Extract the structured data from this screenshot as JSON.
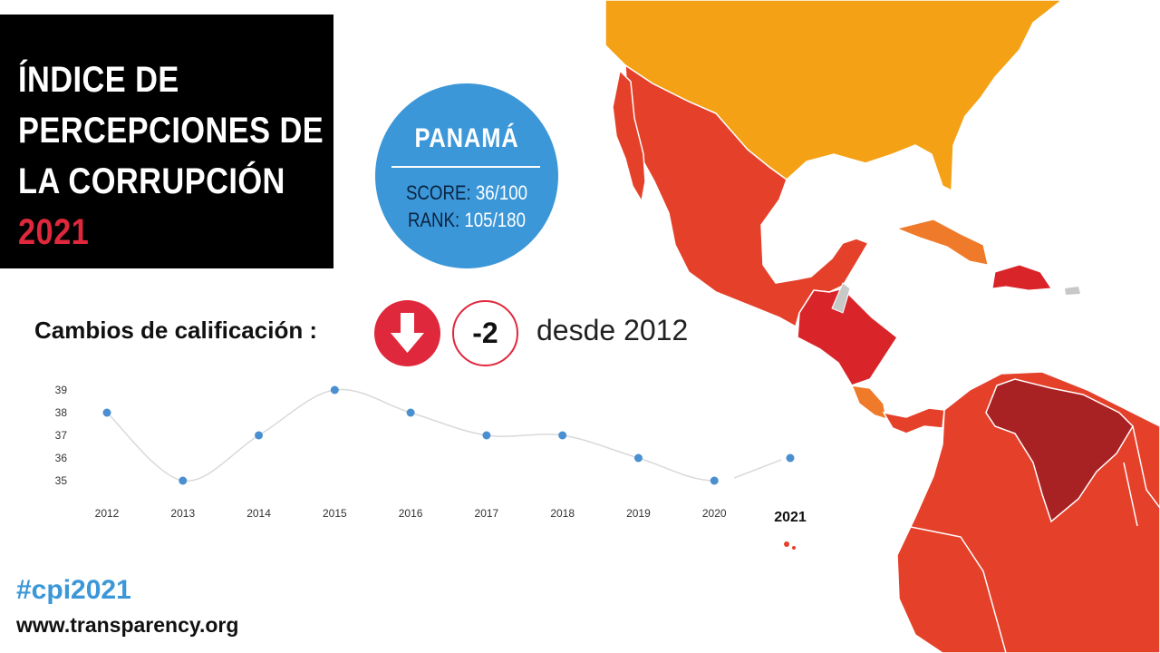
{
  "header": {
    "title_lines": [
      "ÍNDICE  DE",
      "PERCEPCIONES DE",
      "LA CORRUPCIÓN"
    ],
    "year": "2021"
  },
  "country_card": {
    "name": "PANAMÁ",
    "score_label": "SCORE:",
    "score_value": "36/100",
    "rank_label": "RANK:",
    "rank_value": "105/180"
  },
  "change": {
    "label": "Cambios de calificación :",
    "direction_icon": "arrow-down-icon",
    "delta": "-2",
    "since": "desde 2012"
  },
  "chart_data": {
    "type": "line",
    "categories": [
      "2012",
      "2013",
      "2014",
      "2015",
      "2016",
      "2017",
      "2018",
      "2019",
      "2020",
      "2021"
    ],
    "series": [
      {
        "values": [
          38,
          35,
          37,
          39,
          38,
          37,
          37,
          36,
          35,
          36
        ]
      }
    ],
    "ylim": [
      35,
      39
    ],
    "yticks": [
      "35",
      "36",
      "37",
      "38",
      "39"
    ],
    "highlight_category": "2021",
    "grid": false,
    "colors": {
      "point": "#4a8fd0",
      "line": "#d9d9d9"
    }
  },
  "footer": {
    "hashtag": "#cpi2021",
    "website": "www.transparency.org"
  },
  "colors": {
    "title_bg": "#000000",
    "accent_red": "#e0283c",
    "accent_blue": "#3b97d8",
    "map_usa": "#f4a116",
    "map_mexico": "#e5402a",
    "map_central": "#d9252a",
    "map_venezuela": "#a82224",
    "map_costa_rica": "#ee7a2a"
  }
}
